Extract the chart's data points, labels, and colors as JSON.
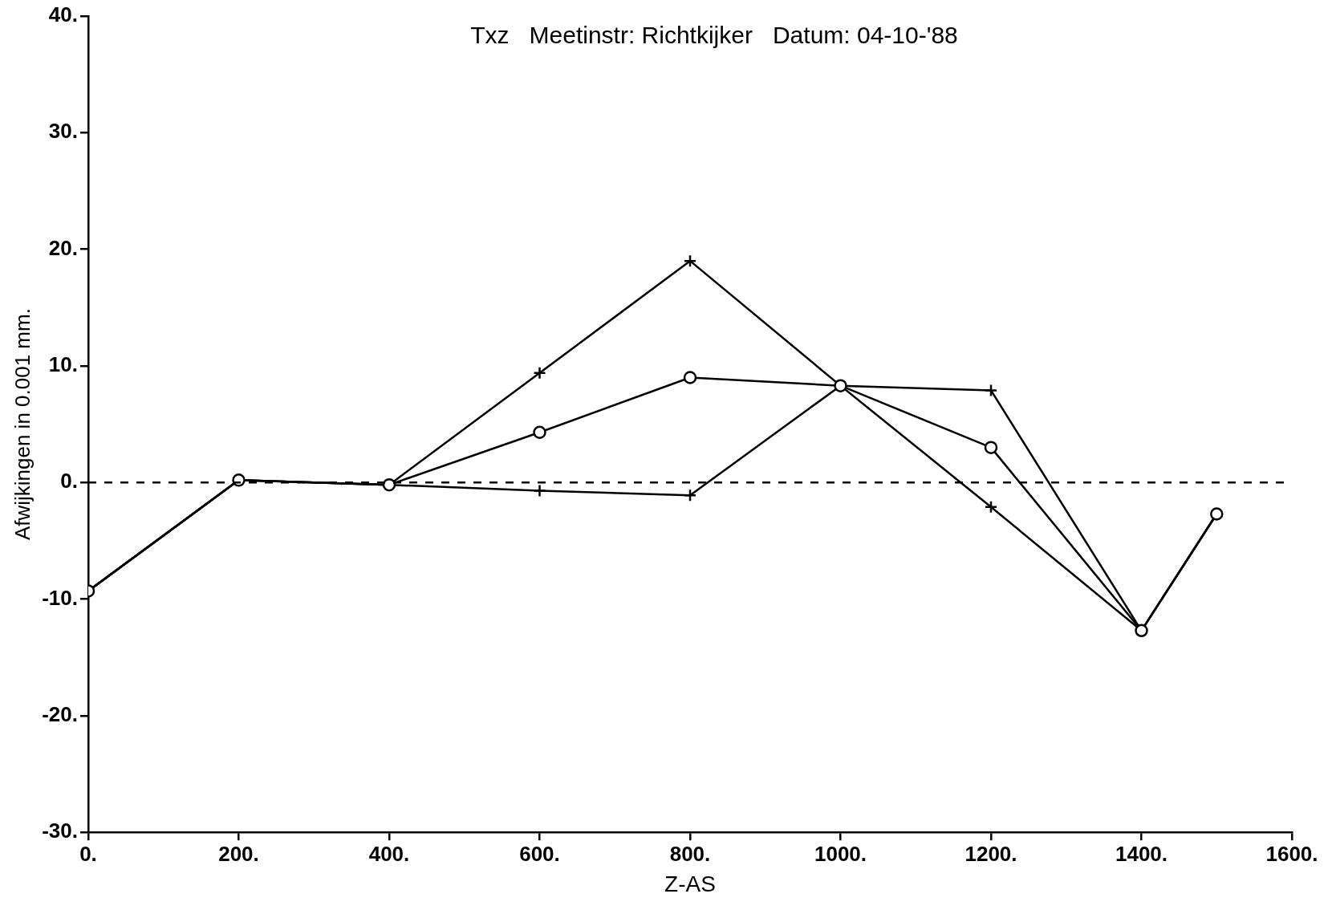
{
  "chart_data": {
    "type": "line",
    "subtitle": "Txz   Meetinstr: Richtkijker   Datum: 04-10-'88",
    "xlabel": "Z-AS",
    "ylabel": "Afwijkingen in 0.001 mm.",
    "series": [
      {
        "color": "#000000",
        "marker": "circle",
        "x": [
          0,
          200,
          400,
          600,
          800,
          1000,
          1200,
          1400,
          1500
        ],
        "values": [
          -9.3,
          0.2,
          -0.2,
          4.3,
          9.0,
          8.3,
          3.0,
          -12.7,
          -2.7
        ]
      },
      {
        "color": "#000000",
        "marker": "cross",
        "x": [
          0,
          200,
          400,
          600,
          800,
          1000,
          1200,
          1400,
          1500
        ],
        "values": [
          -9.3,
          0.2,
          -0.2,
          9.4,
          19.0,
          8.3,
          -2.1,
          -12.7,
          -2.7
        ]
      },
      {
        "color": "#000000",
        "marker": "cross",
        "x": [
          0,
          200,
          400,
          600,
          800,
          1000,
          1200,
          1400,
          1500
        ],
        "values": [
          -9.3,
          0.2,
          -0.2,
          -0.7,
          -1.1,
          8.3,
          7.9,
          -12.7,
          -2.7
        ]
      }
    ],
    "xlim": [
      0,
      1600
    ],
    "xticks": [
      {
        "value": 0,
        "label": "0."
      },
      {
        "value": 200,
        "label": "200."
      },
      {
        "value": 400,
        "label": "400."
      },
      {
        "value": 600,
        "label": "600."
      },
      {
        "value": 800,
        "label": "800."
      },
      {
        "value": 1000,
        "label": "1000."
      },
      {
        "value": 1200,
        "label": "1200."
      },
      {
        "value": 1400,
        "label": "1400."
      },
      {
        "value": 1600,
        "label": "1600."
      }
    ],
    "ylim": [
      -30,
      40
    ],
    "yticks": [
      {
        "value": -30,
        "label": "-30."
      },
      {
        "value": -20,
        "label": "-20."
      },
      {
        "value": -10,
        "label": "-10."
      },
      {
        "value": 0,
        "label": "0."
      },
      {
        "value": 10,
        "label": "10."
      },
      {
        "value": 20,
        "label": "20."
      },
      {
        "value": 30,
        "label": "30."
      },
      {
        "value": 40,
        "label": "40."
      }
    ],
    "ref_lines": [
      {
        "axis": "y",
        "value": 0,
        "line_style": "dashed",
        "color": "#000000"
      }
    ],
    "grid": false,
    "legend": false
  }
}
